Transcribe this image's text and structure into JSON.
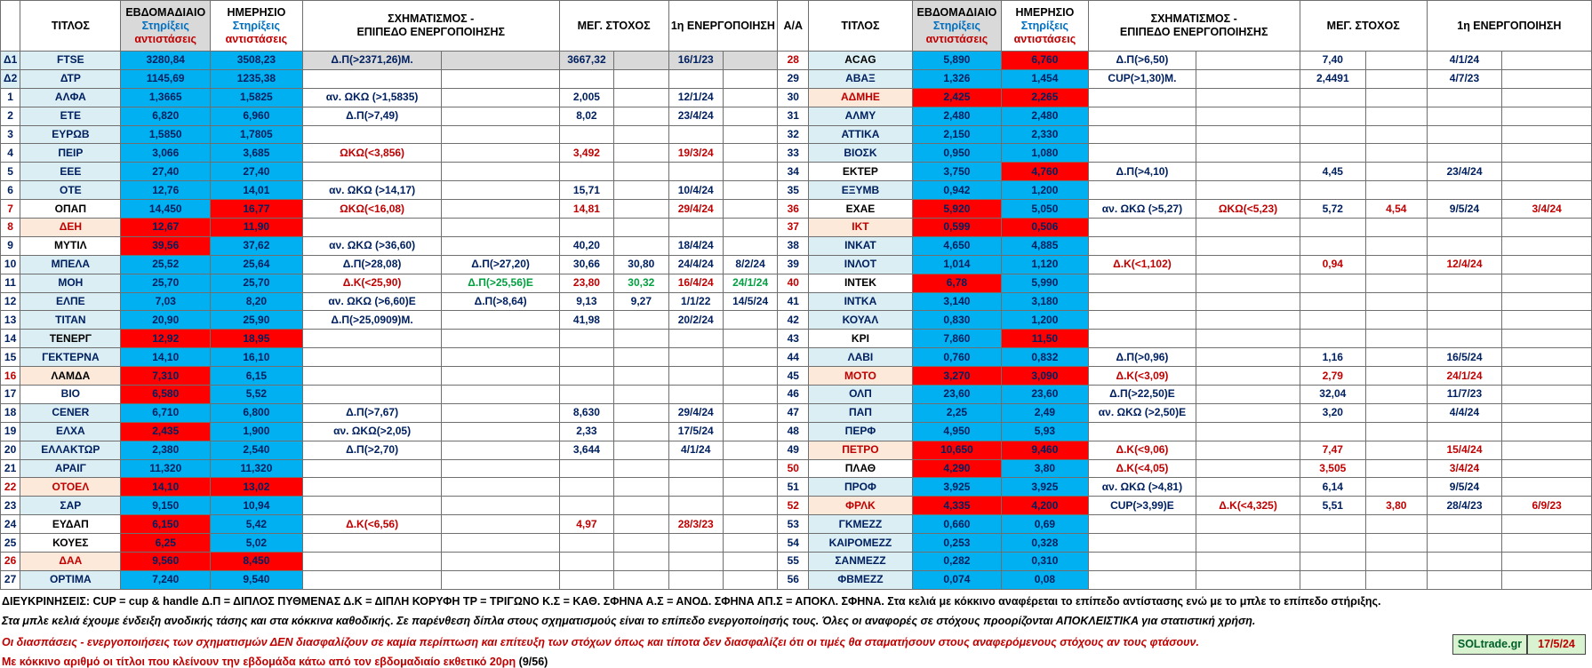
{
  "headers": {
    "left": {
      "aa": "",
      "title": "ΤΙΤΛΟΣ",
      "weekly": [
        "ΕΒΔΟΜΑΔΙΑΙΟ",
        "Στηρίξεις",
        "αντιστάσεις"
      ],
      "daily": [
        "ΗΜΕΡΗΣΙΟ",
        "Στηρίξεις",
        "αντιστάσεις"
      ],
      "formation": [
        "ΣΧΗΜΑΤΙΣΜΟΣ -",
        "ΕΠΙΠΕΔΟ ΕΝΕΡΓΟΠΟΙΗΣΗΣ"
      ],
      "target": "ΜΕΓ. ΣΤΟΧΟΣ",
      "first": "1η ΕΝΕΡΓΟΠΟΙΗΣΗ"
    },
    "right": {
      "aa": "Α/Α",
      "title": "ΤΙΤΛΟΣ",
      "weekly": [
        "ΕΒΔΟΜΑΔΙΑΙΟ",
        "Στηρίξεις",
        "αντιστάσεις"
      ],
      "daily": [
        "ΗΜΕΡΗΣΙΟ",
        "Στηρίξεις",
        "αντιστάσεις"
      ],
      "formation": [
        "ΣΧΗΜΑΤΙΣΜΟΣ -",
        "ΕΠΙΠΕΔΟ ΕΝΕΡΓΟΠΟΙΗΣΗΣ"
      ],
      "target": "ΜΕΓ. ΣΤΟΧΟΣ",
      "first": "1η ΕΝΕΡΓΟΠΟΙΗΣΗ"
    }
  },
  "colors": {
    "blue_cell": "#00b0f0",
    "red_cell": "#ff0000",
    "light_blue": "#daeef3",
    "peach": "#fde9d9",
    "gray": "#d9d9d9",
    "navy_text": "#002060",
    "red_text": "#c00000",
    "green_text": "#00a040"
  },
  "left_rows": [
    {
      "aa": "Δ1",
      "title": "FTSE",
      "weekly": "3280,84",
      "daily": "3508,23",
      "f1": "Δ.Π(>2371,26)Μ.",
      "f2": "",
      "t1": "3667,32",
      "t2": "",
      "d1": "16/1/23",
      "d2": ""
    },
    {
      "aa": "Δ2",
      "title": "ΔΤΡ",
      "weekly": "1145,69",
      "daily": "1235,38",
      "f1": "",
      "f2": "",
      "t1": "",
      "t2": "",
      "d1": "",
      "d2": ""
    },
    {
      "aa": "1",
      "title": "ΑΛΦΑ",
      "weekly": "1,3665",
      "daily": "1,5825",
      "f1": "αν. ΩΚΩ (>1,5835)",
      "f2": "",
      "t1": "2,005",
      "t2": "",
      "d1": "12/1/24",
      "d2": ""
    },
    {
      "aa": "2",
      "title": "ΕΤΕ",
      "weekly": "6,820",
      "daily": "6,960",
      "f1": "Δ.Π(>7,49)",
      "f2": "",
      "t1": "8,02",
      "t2": "",
      "d1": "23/4/24",
      "d2": ""
    },
    {
      "aa": "3",
      "title": "ΕΥΡΩΒ",
      "weekly": "1,5850",
      "daily": "1,7805",
      "f1": "",
      "f2": "",
      "t1": "",
      "t2": "",
      "d1": "",
      "d2": ""
    },
    {
      "aa": "4",
      "title": "ΠΕΙΡ",
      "weekly": "3,066",
      "daily": "3,685",
      "f1": "ΩΚΩ(<3,856)",
      "f2": "",
      "t1": "3,492",
      "t2": "",
      "d1": "19/3/24",
      "d2": ""
    },
    {
      "aa": "5",
      "title": "ΕΕΕ",
      "weekly": "27,40",
      "daily": "27,40",
      "f1": "",
      "f2": "",
      "t1": "",
      "t2": "",
      "d1": "",
      "d2": ""
    },
    {
      "aa": "6",
      "title": "ΟΤΕ",
      "weekly": "12,76",
      "daily": "14,01",
      "f1": "αν. ΩΚΩ (>14,17)",
      "f2": "",
      "t1": "15,71",
      "t2": "",
      "d1": "10/4/24",
      "d2": ""
    },
    {
      "aa": "7",
      "title": "ΟΠΑΠ",
      "weekly": "14,450",
      "daily": "16,77",
      "f1": "ΩΚΩ(<16,08)",
      "f2": "",
      "t1": "14,81",
      "t2": "",
      "d1": "29/4/24",
      "d2": ""
    },
    {
      "aa": "8",
      "title": "ΔΕΗ",
      "weekly": "12,67",
      "daily": "11,90",
      "f1": "",
      "f2": "",
      "t1": "",
      "t2": "",
      "d1": "",
      "d2": ""
    },
    {
      "aa": "9",
      "title": "ΜΥΤΙΛ",
      "weekly": "39,56",
      "daily": "37,62",
      "f1": "αν. ΩΚΩ (>36,60)",
      "f2": "",
      "t1": "40,20",
      "t2": "",
      "d1": "18/4/24",
      "d2": ""
    },
    {
      "aa": "10",
      "title": "ΜΠΕΛΑ",
      "weekly": "25,52",
      "daily": "25,64",
      "f1": "Δ.Π(>28,08)",
      "f2": "Δ.Π(>27,20)",
      "t1": "30,66",
      "t2": "30,80",
      "d1": "24/4/24",
      "d2": "8/2/24"
    },
    {
      "aa": "11",
      "title": "ΜΟΗ",
      "weekly": "25,70",
      "daily": "25,70",
      "f1": "Δ.Κ(<25,90)",
      "f2": "Δ.Π(>25,56)Ε",
      "t1": "23,80",
      "t2": "30,32",
      "d1": "16/4/24",
      "d2": "24/1/24"
    },
    {
      "aa": "12",
      "title": "ΕΛΠΕ",
      "weekly": "7,03",
      "daily": "8,20",
      "f1": "αν. ΩΚΩ (>6,60)Ε",
      "f2": "Δ.Π(>8,64)",
      "t1": "9,13",
      "t2": "9,27",
      "d1": "1/1/22",
      "d2": "14/5/24"
    },
    {
      "aa": "13",
      "title": "ΤΙΤΑΝ",
      "weekly": "20,90",
      "daily": "25,90",
      "f1": "Δ.Π(>25,0909)Μ.",
      "f2": "",
      "t1": "41,98",
      "t2": "",
      "d1": "20/2/24",
      "d2": ""
    },
    {
      "aa": "14",
      "title": "ΤΕΝΕΡΓ",
      "weekly": "12,92",
      "daily": "18,95",
      "f1": "",
      "f2": "",
      "t1": "",
      "t2": "",
      "d1": "",
      "d2": ""
    },
    {
      "aa": "15",
      "title": "ΓΕΚΤΕΡΝΑ",
      "weekly": "14,10",
      "daily": "16,10",
      "f1": "",
      "f2": "",
      "t1": "",
      "t2": "",
      "d1": "",
      "d2": ""
    },
    {
      "aa": "16",
      "title": "ΛΑΜΔΑ",
      "weekly": "7,310",
      "daily": "6,15",
      "f1": "",
      "f2": "",
      "t1": "",
      "t2": "",
      "d1": "",
      "d2": ""
    },
    {
      "aa": "17",
      "title": "ΒΙΟ",
      "weekly": "6,580",
      "daily": "5,52",
      "f1": "",
      "f2": "",
      "t1": "",
      "t2": "",
      "d1": "",
      "d2": ""
    },
    {
      "aa": "18",
      "title": "CENER",
      "weekly": "6,710",
      "daily": "6,800",
      "f1": "Δ.Π(>7,67)",
      "f2": "",
      "t1": "8,630",
      "t2": "",
      "d1": "29/4/24",
      "d2": ""
    },
    {
      "aa": "19",
      "title": "ΕΛΧΑ",
      "weekly": "2,435",
      "daily": "1,900",
      "f1": "αν. ΩΚΩ(>2,05)",
      "f2": "",
      "t1": "2,33",
      "t2": "",
      "d1": "17/5/24",
      "d2": ""
    },
    {
      "aa": "20",
      "title": "ΕΛΛΑΚΤΩΡ",
      "weekly": "2,380",
      "daily": "2,540",
      "f1": "Δ.Π(>2,70)",
      "f2": "",
      "t1": "3,644",
      "t2": "",
      "d1": "4/1/24",
      "d2": ""
    },
    {
      "aa": "21",
      "title": "ΑΡΑΙΓ",
      "weekly": "11,320",
      "daily": "11,320",
      "f1": "",
      "f2": "",
      "t1": "",
      "t2": "",
      "d1": "",
      "d2": ""
    },
    {
      "aa": "22",
      "title": "ΟΤΟΕΛ",
      "weekly": "14,10",
      "daily": "13,02",
      "f1": "",
      "f2": "",
      "t1": "",
      "t2": "",
      "d1": "",
      "d2": ""
    },
    {
      "aa": "23",
      "title": "ΣΑΡ",
      "weekly": "9,150",
      "daily": "10,94",
      "f1": "",
      "f2": "",
      "t1": "",
      "t2": "",
      "d1": "",
      "d2": ""
    },
    {
      "aa": "24",
      "title": "ΕΥΔΑΠ",
      "weekly": "6,150",
      "daily": "5,42",
      "f1": "Δ.Κ(<6,56)",
      "f2": "",
      "t1": "4,97",
      "t2": "",
      "d1": "28/3/23",
      "d2": ""
    },
    {
      "aa": "25",
      "title": "ΚΟΥΕΣ",
      "weekly": "6,25",
      "daily": "5,02",
      "f1": "",
      "f2": "",
      "t1": "",
      "t2": "",
      "d1": "",
      "d2": ""
    },
    {
      "aa": "26",
      "title": "ΔΑΑ",
      "weekly": "9,560",
      "daily": "8,450",
      "f1": "",
      "f2": "",
      "t1": "",
      "t2": "",
      "d1": "",
      "d2": ""
    },
    {
      "aa": "27",
      "title": "OPTIMA",
      "weekly": "7,240",
      "daily": "9,540",
      "f1": "",
      "f2": "",
      "t1": "",
      "t2": "",
      "d1": "",
      "d2": ""
    }
  ],
  "right_rows": [
    {
      "aa": "28",
      "title": "ACAG",
      "weekly": "5,890",
      "daily": "6,760",
      "f1": "Δ.Π(>6,50)",
      "f2": "",
      "t1": "7,40",
      "t2": "",
      "d1": "4/1/24",
      "d2": ""
    },
    {
      "aa": "29",
      "title": "ΑΒΑΞ",
      "weekly": "1,326",
      "daily": "1,454",
      "f1": "CUP(>1,30)Μ.",
      "f2": "",
      "t1": "2,4491",
      "t2": "",
      "d1": "4/7/23",
      "d2": ""
    },
    {
      "aa": "30",
      "title": "ΑΔΜΗΕ",
      "weekly": "2,425",
      "daily": "2,265",
      "f1": "",
      "f2": "",
      "t1": "",
      "t2": "",
      "d1": "",
      "d2": ""
    },
    {
      "aa": "31",
      "title": "ΑΛΜΥ",
      "weekly": "2,480",
      "daily": "2,480",
      "f1": "",
      "f2": "",
      "t1": "",
      "t2": "",
      "d1": "",
      "d2": ""
    },
    {
      "aa": "32",
      "title": "ΑΤΤΙΚΑ",
      "weekly": "2,150",
      "daily": "2,330",
      "f1": "",
      "f2": "",
      "t1": "",
      "t2": "",
      "d1": "",
      "d2": ""
    },
    {
      "aa": "33",
      "title": "ΒΙΟΣΚ",
      "weekly": "0,950",
      "daily": "1,080",
      "f1": "",
      "f2": "",
      "t1": "",
      "t2": "",
      "d1": "",
      "d2": ""
    },
    {
      "aa": "34",
      "title": "ΕΚΤΕΡ",
      "weekly": "3,750",
      "daily": "4,760",
      "f1": "Δ.Π(>4,10)",
      "f2": "",
      "t1": "4,45",
      "t2": "",
      "d1": "23/4/24",
      "d2": ""
    },
    {
      "aa": "35",
      "title": "ΕΞΥΜΒ",
      "weekly": "0,942",
      "daily": "1,200",
      "f1": "",
      "f2": "",
      "t1": "",
      "t2": "",
      "d1": "",
      "d2": ""
    },
    {
      "aa": "36",
      "title": "ΕΧΑΕ",
      "weekly": "5,920",
      "daily": "5,050",
      "f1": "αν. ΩΚΩ (>5,27)",
      "f2": "ΩΚΩ(<5,23)",
      "t1": "5,72",
      "t2": "4,54",
      "d1": "9/5/24",
      "d2": "3/4/24"
    },
    {
      "aa": "37",
      "title": "ΙΚΤ",
      "weekly": "0,599",
      "daily": "0,506",
      "f1": "",
      "f2": "",
      "t1": "",
      "t2": "",
      "d1": "",
      "d2": ""
    },
    {
      "aa": "38",
      "title": "ΙΝΚΑΤ",
      "weekly": "4,650",
      "daily": "4,885",
      "f1": "",
      "f2": "",
      "t1": "",
      "t2": "",
      "d1": "",
      "d2": ""
    },
    {
      "aa": "39",
      "title": "ΙΝΛΟΤ",
      "weekly": "1,014",
      "daily": "1,120",
      "f1": "Δ.Κ(<1,102)",
      "f2": "",
      "t1": "0,94",
      "t2": "",
      "d1": "12/4/24",
      "d2": ""
    },
    {
      "aa": "40",
      "title": "ΙΝΤΕΚ",
      "weekly": "6,78",
      "daily": "5,990",
      "f1": "",
      "f2": "",
      "t1": "",
      "t2": "",
      "d1": "",
      "d2": ""
    },
    {
      "aa": "41",
      "title": "ΙΝΤΚΑ",
      "weekly": "3,140",
      "daily": "3,180",
      "f1": "",
      "f2": "",
      "t1": "",
      "t2": "",
      "d1": "",
      "d2": ""
    },
    {
      "aa": "42",
      "title": "ΚΟΥΑΛ",
      "weekly": "0,830",
      "daily": "1,200",
      "f1": "",
      "f2": "",
      "t1": "",
      "t2": "",
      "d1": "",
      "d2": ""
    },
    {
      "aa": "43",
      "title": "ΚΡΙ",
      "weekly": "7,860",
      "daily": "11,50",
      "f1": "",
      "f2": "",
      "t1": "",
      "t2": "",
      "d1": "",
      "d2": ""
    },
    {
      "aa": "44",
      "title": "ΛΑΒΙ",
      "weekly": "0,760",
      "daily": "0,832",
      "f1": "Δ.Π(>0,96)",
      "f2": "",
      "t1": "1,16",
      "t2": "",
      "d1": "16/5/24",
      "d2": ""
    },
    {
      "aa": "45",
      "title": "ΜΟΤΟ",
      "weekly": "3,270",
      "daily": "3,090",
      "f1": "Δ.Κ(<3,09)",
      "f2": "",
      "t1": "2,79",
      "t2": "",
      "d1": "24/1/24",
      "d2": ""
    },
    {
      "aa": "46",
      "title": "ΟΛΠ",
      "weekly": "23,60",
      "daily": "23,60",
      "f1": "Δ.Π(>22,50)Ε",
      "f2": "",
      "t1": "32,04",
      "t2": "",
      "d1": "11/7/23",
      "d2": ""
    },
    {
      "aa": "47",
      "title": "ΠΑΠ",
      "weekly": "2,25",
      "daily": "2,49",
      "f1": "αν. ΩΚΩ (>2,50)Ε",
      "f2": "",
      "t1": "3,20",
      "t2": "",
      "d1": "4/4/24",
      "d2": ""
    },
    {
      "aa": "48",
      "title": "ΠΕΡΦ",
      "weekly": "4,950",
      "daily": "5,93",
      "f1": "",
      "f2": "",
      "t1": "",
      "t2": "",
      "d1": "",
      "d2": ""
    },
    {
      "aa": "49",
      "title": "ΠΕΤΡΟ",
      "weekly": "10,650",
      "daily": "9,460",
      "f1": "Δ.Κ(<9,06)",
      "f2": "",
      "t1": "7,47",
      "t2": "",
      "d1": "15/4/24",
      "d2": ""
    },
    {
      "aa": "50",
      "title": "ΠΛΑΘ",
      "weekly": "4,290",
      "daily": "3,80",
      "f1": "Δ.Κ(<4,05)",
      "f2": "",
      "t1": "3,505",
      "t2": "",
      "d1": "3/4/24",
      "d2": ""
    },
    {
      "aa": "51",
      "title": "ΠΡΟΦ",
      "weekly": "3,925",
      "daily": "3,925",
      "f1": "αν. ΩΚΩ (>4,81)",
      "f2": "",
      "t1": "6,14",
      "t2": "",
      "d1": "9/5/24",
      "d2": ""
    },
    {
      "aa": "52",
      "title": "ΦΡΛΚ",
      "weekly": "4,335",
      "daily": "4,200",
      "f1": "CUP(>3,99)Ε",
      "f2": "Δ.Κ(<4,325)",
      "t1": "5,51",
      "t2": "3,80",
      "d1": "28/4/23",
      "d2": "6/9/23"
    },
    {
      "aa": "53",
      "title": "ΓΚΜΕΖΖ",
      "weekly": "0,660",
      "daily": "0,69",
      "f1": "",
      "f2": "",
      "t1": "",
      "t2": "",
      "d1": "",
      "d2": ""
    },
    {
      "aa": "54",
      "title": "ΚΑΙΡΟΜΕΖΖ",
      "weekly": "0,253",
      "daily": "0,328",
      "f1": "",
      "f2": "",
      "t1": "",
      "t2": "",
      "d1": "",
      "d2": ""
    },
    {
      "aa": "55",
      "title": "ΣΑΝΜΕΖΖ",
      "weekly": "0,282",
      "daily": "0,310",
      "f1": "",
      "f2": "",
      "t1": "",
      "t2": "",
      "d1": "",
      "d2": ""
    },
    {
      "aa": "56",
      "title": "ΦΒΜΕΖΖ",
      "weekly": "0,074",
      "daily": "0,08",
      "f1": "",
      "f2": "",
      "t1": "",
      "t2": "",
      "d1": "",
      "d2": ""
    }
  ],
  "footer": {
    "line1": "ΔΙΕΥΚΡΙΝΗΣΕΙΣ: CUP = cup & handle   Δ.Π = ΔΙΠΛΟΣ ΠΥΘΜΕΝΑΣ  Δ.Κ = ΔΙΠΛΗ ΚΟΡΥΦΗ TP = ΤΡΙΓΩΝΟ  Κ.Σ = ΚΑΘ. ΣΦΗΝΑ  Α.Σ = ΑΝΟΔ. ΣΦΗΝΑ  ΑΠ.Σ = ΑΠΟΚΛ. ΣΦΗΝΑ. Στα κελιά με κόκκινο αναφέρεται το επίπεδο αντίστασης ενώ με το μπλε το επίπεδο στήριξης.",
    "line2": "Στα μπλε κελιά έχουμε ένδειξη ανοδικής τάσης και στα κόκκινα καθοδικής. Σε παρένθεση δίπλα στους σχηματισμούς είναι το επίπεδο ενεργοποίησής τους. Όλες οι αναφορές σε στόχους προορίζονται ΑΠΟΚΛΕΙΣΤΙΚΑ για  στατιστική χρήση.",
    "line3": "Οι διασπάσεις - ενεργοποιήσεις των σχηματισμών  ΔΕΝ διασφαλίζουν σε καμία περίπτωση και επίτευξη των στόχων όπως και τίποτα δεν διασφαλίζει ότι οι τιμές θα σταματήσουν στους αναφερόμενους στόχους αν τους φτάσουν.",
    "line4a": "Με κόκκινο αριθμό οι τίτλοι που κλείνουν την εβδομάδα κάτω από τον εβδομαδιαίο εκθετικό 20ρη",
    "line4b": "(9/56)",
    "brand": "SOLtrade.gr",
    "date": "17/5/24"
  }
}
